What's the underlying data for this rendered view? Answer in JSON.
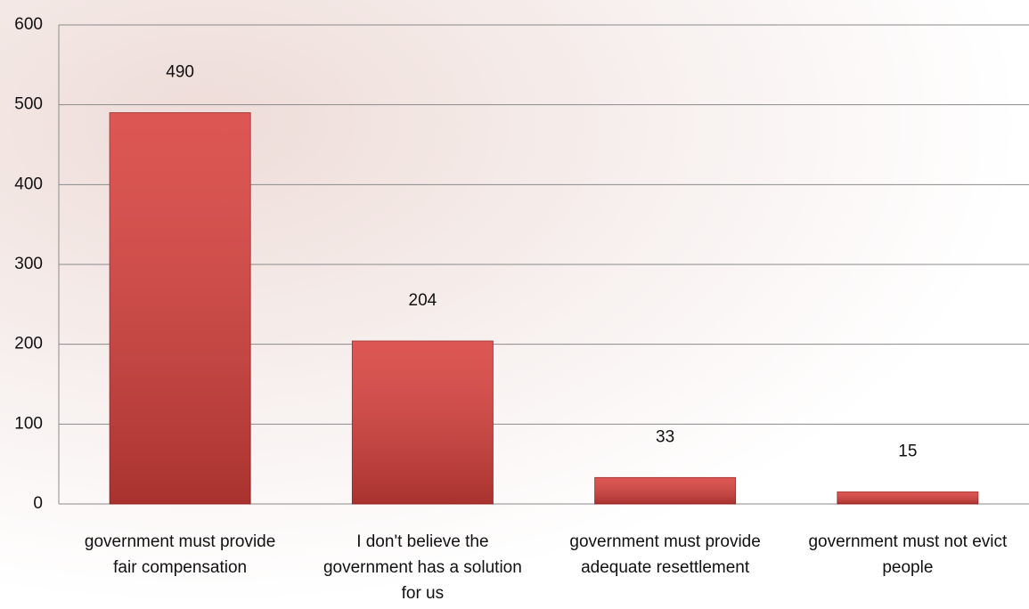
{
  "chart_data": {
    "type": "bar",
    "categories": [
      "government must provide fair compensation",
      "I don't believe the government has a solution for us",
      "government must provide adequate resettlement",
      "government must not evict people"
    ],
    "values": [
      490,
      204,
      33,
      15
    ],
    "color": "#d8403c",
    "ylim": [
      0,
      600
    ],
    "yticks": [
      0,
      100,
      200,
      300,
      400,
      500,
      600
    ],
    "grid": true
  }
}
